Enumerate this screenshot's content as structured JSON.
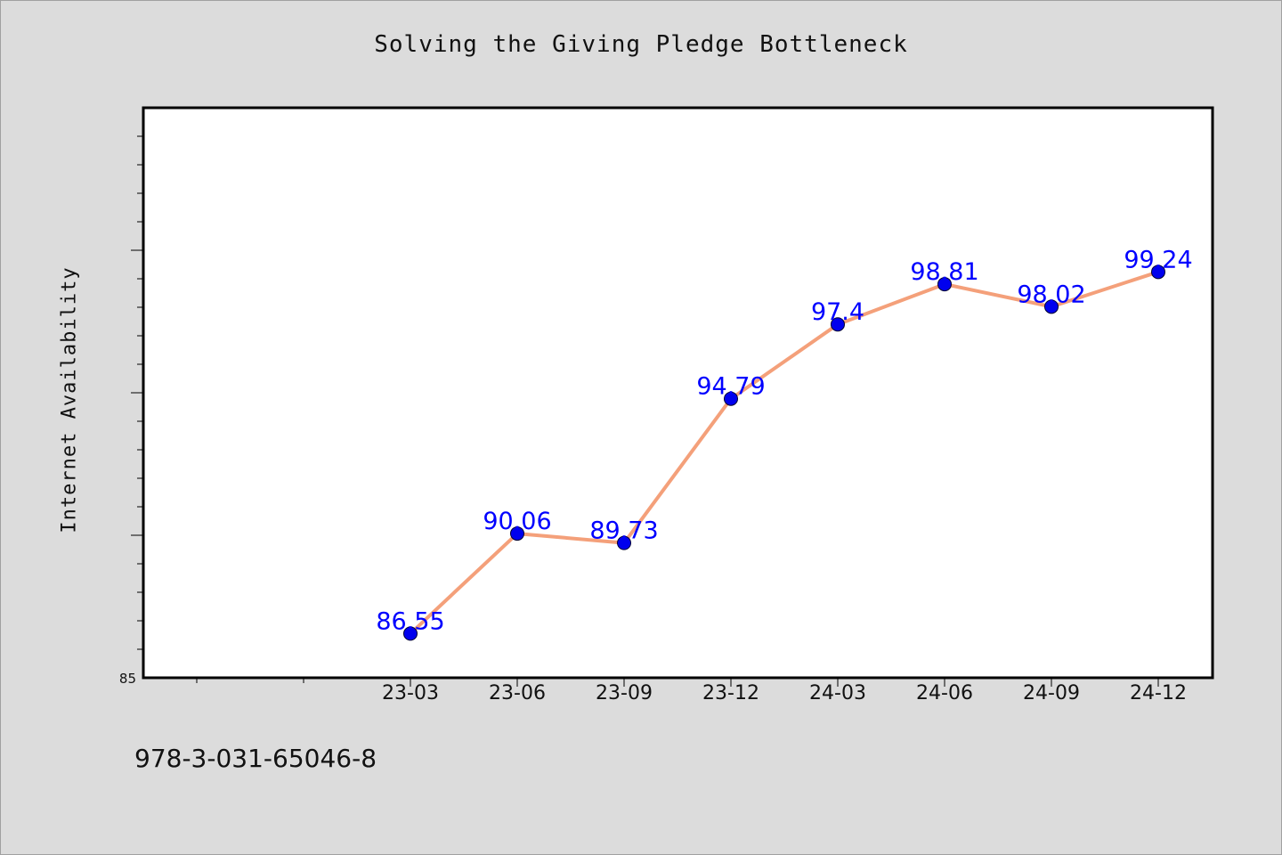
{
  "figure": {
    "footer_code": "978-3-031-65046-8"
  },
  "chart_data": {
    "type": "line",
    "title": "Solving the Giving Pledge Bottleneck",
    "xlabel": "",
    "ylabel": "Internet Availability",
    "categories": [
      "23-03",
      "23-06",
      "23-09",
      "23-12",
      "24-03",
      "24-06",
      "24-09",
      "24-12"
    ],
    "values": [
      86.55,
      90.06,
      89.73,
      94.79,
      97.4,
      98.81,
      98.02,
      99.24
    ],
    "data_labels": [
      "86.55",
      "90.06",
      "89.73",
      "94.79",
      "97.4",
      "98.81",
      "98.02",
      "99.24"
    ],
    "ylim": [
      85,
      105
    ],
    "y_tick_labels": [
      "85"
    ],
    "grid": false,
    "legend": "none",
    "colors": {
      "line": "#f4a07a",
      "marker": "#0000ee",
      "marker_edge": "#000033",
      "data_label": "#0000ff",
      "plot_background": "#ffffff",
      "figure_background": "#dcdcdc"
    }
  }
}
